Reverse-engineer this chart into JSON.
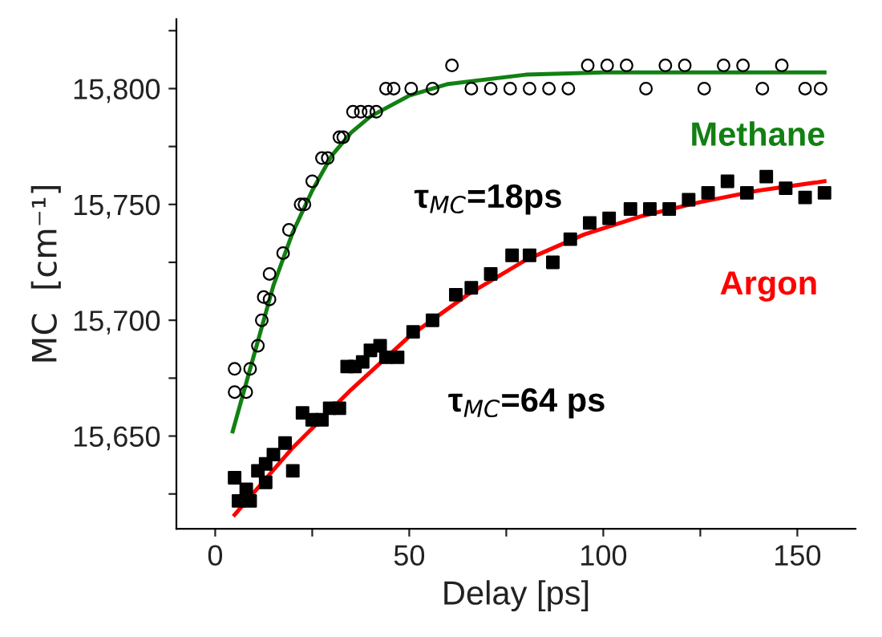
{
  "chart_data": {
    "type": "scatter",
    "xlabel": "Delay [ps]",
    "ylabel": "MC  [cm⁻¹]",
    "xlim": [
      -10,
      165
    ],
    "ylim": [
      15610,
      15830
    ],
    "xticks": [
      0,
      {
        "value": 25,
        "label": null
      },
      50,
      {
        "value": 75,
        "label": null
      },
      100,
      {
        "value": 125,
        "label": null
      },
      150
    ],
    "yticks": [
      {
        "value": 15625,
        "label": null
      },
      {
        "value": 15650,
        "label": "15,650"
      },
      {
        "value": 15675,
        "label": null
      },
      {
        "value": 15700,
        "label": "15,700"
      },
      {
        "value": 15725,
        "label": null
      },
      {
        "value": 15750,
        "label": "15,750"
      },
      {
        "value": 15775,
        "label": null
      },
      {
        "value": 15800,
        "label": "15,800"
      },
      {
        "value": 15825,
        "label": null
      }
    ],
    "grid": false,
    "legend": false,
    "annotations": [
      "τ$_{MC}$=18ps",
      "τ$_{MC}$=64 ps"
    ],
    "series": [
      {
        "marker": "circle",
        "color": "#000000",
        "x": [
          5,
          8,
          5,
          9,
          11,
          12,
          14,
          12.5,
          14,
          17.5,
          19,
          22,
          23,
          25,
          27.5,
          29,
          32,
          33,
          35.5,
          37.5,
          39.5,
          41.5,
          44,
          46,
          50.5,
          56,
          61,
          66,
          71,
          76,
          81,
          86,
          91,
          96,
          101,
          106,
          111,
          116,
          121,
          126,
          131,
          136,
          141,
          146,
          152,
          156
        ],
        "values": [
          15669,
          15669,
          15679,
          15679,
          15689,
          15700,
          15709,
          15710,
          15720,
          15729,
          15739,
          15750,
          15750,
          15760,
          15770,
          15770,
          15779,
          15779,
          15790,
          15790,
          15790,
          15790,
          15800,
          15800,
          15800,
          15800,
          15810,
          15800,
          15800,
          15800,
          15800,
          15800,
          15800,
          15810,
          15810,
          15810,
          15800,
          15810,
          15810,
          15800,
          15810,
          15810,
          15800,
          15810,
          15800,
          15800
        ]
      },
      {
        "marker": "square",
        "color": "#000000",
        "x": [
          5,
          6,
          9,
          8,
          11,
          13,
          13,
          15,
          18,
          20,
          22.5,
          25,
          27.5,
          29.5,
          32,
          34,
          36,
          38,
          40,
          42.5,
          44,
          47,
          51,
          56,
          62,
          66,
          71,
          76.5,
          81,
          87,
          91.5,
          96.5,
          101.5,
          107,
          112,
          117,
          122,
          127,
          132,
          137,
          142,
          147,
          152,
          157
        ],
        "values": [
          15632,
          15622,
          15622,
          15627,
          15635,
          15630,
          15638,
          15642,
          15647,
          15635,
          15660,
          15657,
          15657,
          15662,
          15662,
          15680,
          15680,
          15682,
          15687,
          15689,
          15684,
          15684,
          15695,
          15700,
          15711,
          15714,
          15720,
          15728,
          15728,
          15725,
          15735,
          15742,
          15744,
          15748,
          15748,
          15748,
          15752,
          15755,
          15760,
          15755,
          15762,
          15757,
          15753,
          15755
        ]
      },
      {
        "name": "Methane",
        "type": "line",
        "color": "#128012",
        "x": [
          4.5,
          10,
          15,
          20,
          25,
          30,
          35,
          40,
          50,
          60,
          80,
          100,
          130,
          157
        ],
        "values": [
          15652,
          15685,
          15715,
          15738,
          15756,
          15771,
          15781,
          15788,
          15797,
          15802,
          15806,
          15807,
          15807,
          15807
        ]
      },
      {
        "name": "Argon",
        "type": "line",
        "color": "#ff0000",
        "x": [
          5,
          20,
          35,
          50,
          65,
          80,
          95,
          110,
          125,
          140,
          157
        ],
        "values": [
          15616,
          15645,
          15670,
          15693,
          15711,
          15726,
          15737,
          15745,
          15751,
          15756,
          15760
        ]
      }
    ]
  }
}
